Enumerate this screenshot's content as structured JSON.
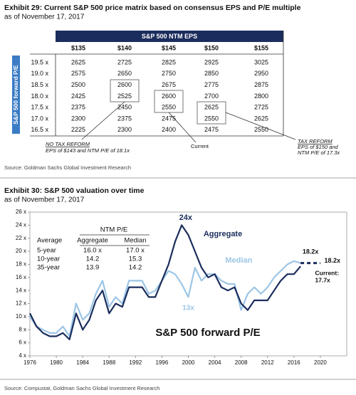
{
  "exhibit29": {
    "title": "Exhibit 29: Current S&P 500 price matrix based on consensus EPS and P/E multiple",
    "subtitle": "as of November 17, 2017",
    "header": "S&P 500 NTM EPS",
    "row_axis_label": "S&P 500 forward P/E",
    "columns": [
      "$135",
      "$140",
      "$145",
      "$150",
      "$155"
    ],
    "rows": [
      {
        "label": "19.5 x",
        "cells": [
          2625,
          2725,
          2825,
          2925,
          3025
        ]
      },
      {
        "label": "19.0 x",
        "cells": [
          2575,
          2650,
          2750,
          2850,
          2950
        ]
      },
      {
        "label": "18.5 x",
        "cells": [
          2500,
          2600,
          2675,
          2775,
          2875
        ]
      },
      {
        "label": "18.0 x",
        "cells": [
          2425,
          2525,
          2600,
          2700,
          2800
        ]
      },
      {
        "label": "17.5 x",
        "cells": [
          2375,
          2450,
          2550,
          2625,
          2725
        ]
      },
      {
        "label": "17.0 x",
        "cells": [
          2300,
          2375,
          2475,
          2550,
          2625
        ]
      },
      {
        "label": "16.5 x",
        "cells": [
          2225,
          2300,
          2400,
          2475,
          2550
        ]
      }
    ],
    "annotations": {
      "tax_reform": {
        "heading": "TAX REFORM",
        "lines": [
          "EPS of $150 and",
          "NTM P/E of 17.3x"
        ]
      },
      "no_tax_reform": {
        "heading": "NO TAX REFORM",
        "lines": [
          "EPS of $143 and NTM P/E of 18.1x"
        ]
      },
      "current": "Current"
    },
    "source": "Source: Goldman Sachs Global Investment Research"
  },
  "chart_data": {
    "type": "line",
    "title": "Exhibit 30: S&P 500 valuation over time",
    "subtitle": "as of November 17, 2017",
    "caption": "S&P 500 forward P/E",
    "source": "Source: Compustat, Goldman Sachs Global Investment Research",
    "x": [
      1976,
      1977,
      1978,
      1979,
      1980,
      1981,
      1982,
      1983,
      1984,
      1985,
      1986,
      1987,
      1988,
      1989,
      1990,
      1991,
      1992,
      1993,
      1994,
      1995,
      1996,
      1997,
      1998,
      1999,
      2000,
      2001,
      2002,
      2003,
      2004,
      2005,
      2006,
      2007,
      2008,
      2009,
      2010,
      2011,
      2012,
      2013,
      2014,
      2015,
      2016,
      2017
    ],
    "series": [
      {
        "name": "Median",
        "color": "#9cc6e6",
        "values": [
          10,
          8.5,
          8,
          7.5,
          7.5,
          8.5,
          7,
          12,
          9.5,
          10.5,
          13.5,
          15.5,
          11.5,
          13,
          12,
          15.5,
          15.5,
          15.5,
          13.5,
          14,
          15.5,
          17,
          16.5,
          15,
          13,
          17.5,
          15.5,
          16.5,
          16.5,
          15.5,
          15,
          15,
          11,
          13.5,
          14.5,
          13.5,
          14.5,
          16,
          17,
          18,
          18.5,
          18.2
        ]
      },
      {
        "name": "Aggregate",
        "color": "#1b2d5c",
        "values": [
          10.5,
          8.5,
          7.5,
          7,
          7,
          7.5,
          6.5,
          10.5,
          8,
          9.5,
          12.5,
          14,
          10.5,
          12,
          11.5,
          14.5,
          14.5,
          14.5,
          13,
          13,
          15.5,
          18,
          21.5,
          24,
          22.5,
          20,
          17.5,
          16,
          16.5,
          14.5,
          14,
          14.5,
          12,
          11,
          12.5,
          12.5,
          12.5,
          14,
          15.5,
          16.5,
          16.5,
          17.7
        ]
      },
      {
        "color": "#1b2d5c",
        "dashed": true,
        "x": [
          2017,
          2020
        ],
        "values": [
          18.2,
          18.2
        ]
      }
    ],
    "annotations": {
      "peak": "24x",
      "trough": "13x",
      "median_now": "18.2x",
      "projection": "18.2x",
      "current": [
        "Current:",
        "17.7x"
      ]
    },
    "inset_table": {
      "group_header": "NTM P/E",
      "columns": [
        "Average",
        "Aggregate",
        "Median"
      ],
      "rows": [
        [
          "5-year",
          "16.0 x",
          "17.0 x"
        ],
        [
          "10-year",
          "14.2",
          "15.3"
        ],
        [
          "35-year",
          "13.9",
          "14.2"
        ]
      ]
    },
    "xlim": [
      1976,
      2024
    ],
    "ylim": [
      4,
      26
    ],
    "xticks": [
      1976,
      1980,
      1984,
      1988,
      1992,
      1996,
      2000,
      2004,
      2008,
      2012,
      2016,
      2020
    ],
    "yticks": [
      {
        "value": 4,
        "label": "4 x"
      },
      {
        "value": 6,
        "label": "6 x"
      },
      {
        "value": 8,
        "label": "8 x"
      },
      {
        "value": 10,
        "label": "10 x"
      },
      {
        "value": 12,
        "label": "12 x"
      },
      {
        "value": 14,
        "label": "14 x"
      },
      {
        "value": 16,
        "label": "16 x"
      },
      {
        "value": 18,
        "label": "18 x"
      },
      {
        "value": 20,
        "label": "20 x"
      },
      {
        "value": 22,
        "label": "22 x"
      },
      {
        "value": 24,
        "label": "24 x"
      },
      {
        "value": 26,
        "label": "26 x"
      }
    ]
  }
}
